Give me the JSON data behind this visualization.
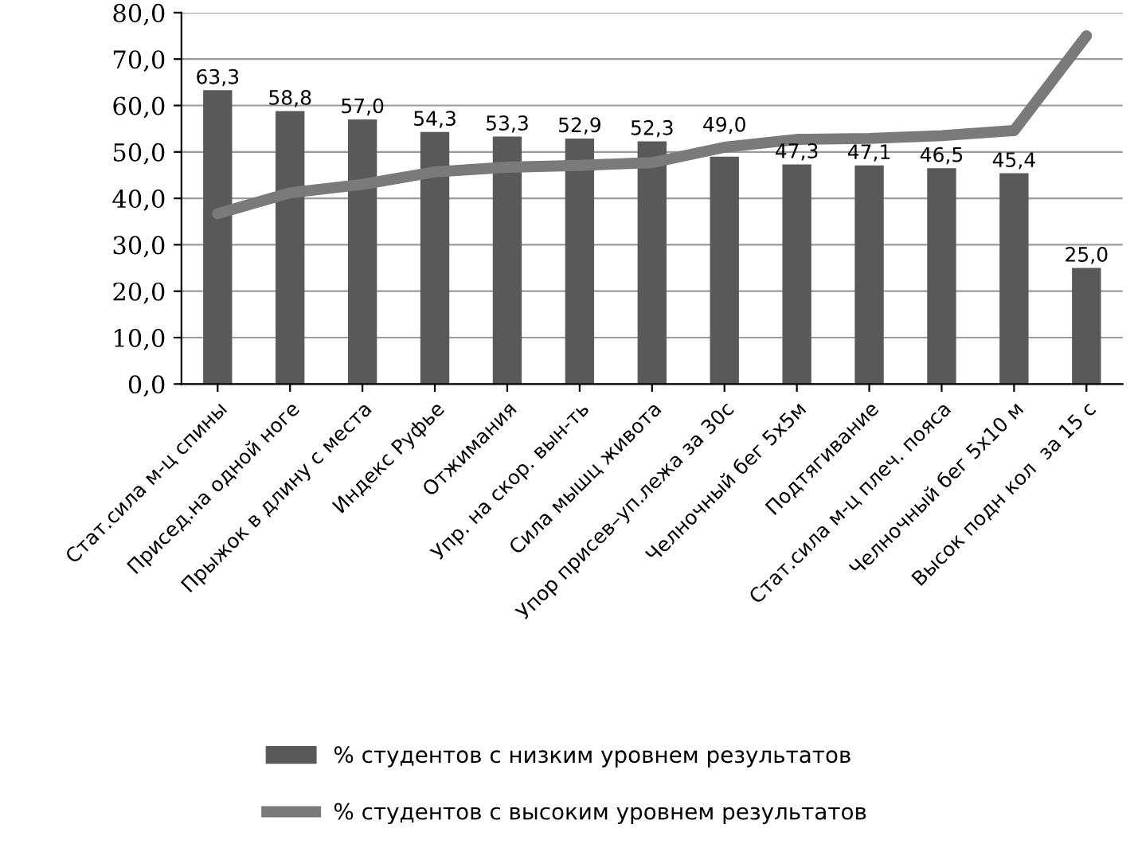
{
  "chart_data": {
    "type": "bar",
    "categories": [
      "Стат.сила м-ц спины",
      "Присед.на одной ноге",
      "Прыжок в длину с места",
      "Индекс Руфье",
      "Отжимания",
      "Упр. на скор. вын-ть",
      "Сила мышц живота",
      "Упор присев–уп.лежа за 30с",
      "Челночный бег 5х5м",
      "Подтягивание",
      "Стат.сила м-ц плеч. пояса",
      "Челночный бег 5х10 м",
      "Высок подн кол  за 15 с"
    ],
    "series": [
      {
        "name": "% студентов с низким уровнем результатов",
        "color": "#595959",
        "values": [
          63.3,
          58.8,
          57.0,
          54.3,
          53.3,
          52.9,
          52.3,
          49.0,
          47.3,
          47.1,
          46.5,
          45.4,
          25.0
        ],
        "value_labels": [
          "63,3",
          "58,8",
          "57,0",
          "54,3",
          "53,3",
          "52,9",
          "52,3",
          "49,0",
          "47,3",
          "47,1",
          "46,5",
          "45,4",
          "25,0"
        ]
      },
      {
        "name": "% студентов с высоким уровнем результатов",
        "type": "line",
        "color": "#7a7a7a",
        "values": [
          36.7,
          41.2,
          43.0,
          45.7,
          46.7,
          47.1,
          47.7,
          51.0,
          52.7,
          52.9,
          53.5,
          54.6,
          75.0
        ]
      }
    ],
    "ylim": [
      0,
      80
    ],
    "yticks": [
      {
        "value": 0,
        "label": "0,0"
      },
      {
        "value": 10,
        "label": "10,0"
      },
      {
        "value": 20,
        "label": "20,0"
      },
      {
        "value": 30,
        "label": "30,0"
      },
      {
        "value": 40,
        "label": "40,0"
      },
      {
        "value": 50,
        "label": "50,0"
      },
      {
        "value": 60,
        "label": "60,0"
      },
      {
        "value": 70,
        "label": "70,0"
      },
      {
        "value": 80,
        "label": "80,0"
      }
    ],
    "grid": "y",
    "legend": "bottom",
    "marker": "none",
    "line_style": "solid"
  }
}
